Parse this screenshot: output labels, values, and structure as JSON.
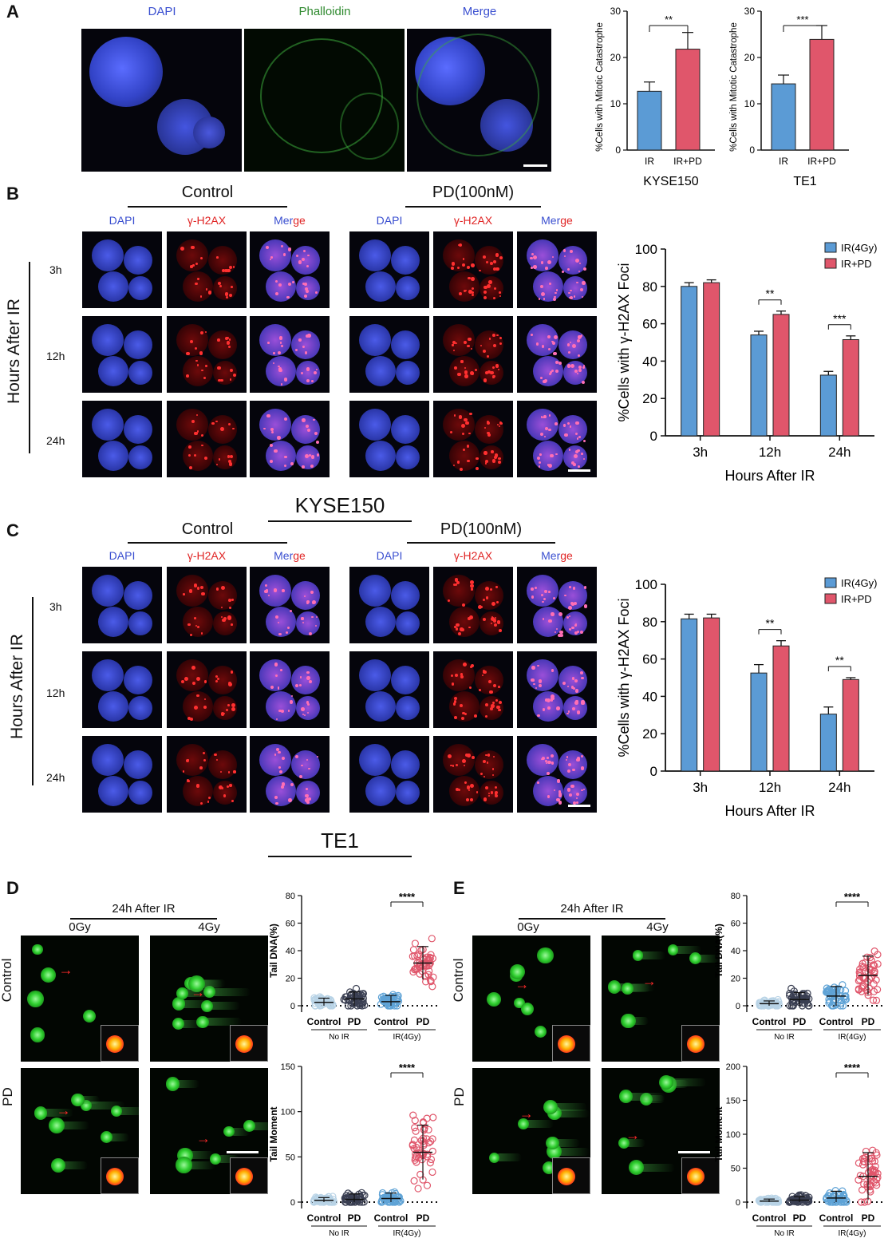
{
  "panels": {
    "A": "A",
    "B": "B",
    "C": "C",
    "D": "D",
    "E": "E"
  },
  "panelA": {
    "labels": {
      "dapi": "DAPI",
      "phalloidin": "Phalloidin",
      "merge": "Merge"
    }
  },
  "panelB": {
    "control": "Control",
    "pd": "PD(100nM)",
    "dapi": "DAPI",
    "h2ax_prefix": "γ-H2AX",
    "merge_a": "Mer",
    "merge_b": "ge",
    "rows": [
      "3h",
      "12h",
      "24h"
    ],
    "side": "Hours After IR",
    "cellline": "KYSE150"
  },
  "panelC": {
    "control": "Control",
    "pd": "PD(100nM)",
    "dapi": "DAPI",
    "h2ax_prefix": "γ-H2AX",
    "merge_a": "Mer",
    "merge_b": "ge",
    "rows": [
      "3h",
      "12h",
      "24h"
    ],
    "side": "Hours After IR",
    "cellline": "TE1"
  },
  "panelD": {
    "header": "24h After IR",
    "cols": [
      "0Gy",
      "4Gy"
    ],
    "rows": [
      "Control",
      "PD"
    ]
  },
  "panelE": {
    "header": "24h After IR",
    "cols": [
      "0Gy",
      "4Gy"
    ],
    "rows": [
      "Control",
      "PD"
    ]
  },
  "colors": {
    "blue": "#5b9bd5",
    "red": "#e0566b",
    "blue_label": "#3a4fd0",
    "red_label": "#e02424",
    "green_label": "#2f8a2f"
  },
  "chart_data": [
    {
      "id": "A1",
      "type": "bar",
      "categories": [
        "IR",
        "IR+PD"
      ],
      "values": [
        12.7,
        21.8
      ],
      "errors": [
        2.0,
        3.6
      ],
      "ylabel": "%Cells with Mitotic Catastrophe",
      "xlabel": "KYSE150",
      "ylim": [
        0,
        30
      ],
      "yticks": [
        0,
        10,
        20,
        30
      ],
      "significance": [
        {
          "between": [
            0,
            1
          ],
          "label": "**"
        }
      ],
      "colors": [
        "#5b9bd5",
        "#e0566b"
      ]
    },
    {
      "id": "A2",
      "type": "bar",
      "categories": [
        "IR",
        "IR+PD"
      ],
      "values": [
        14.3,
        23.9
      ],
      "errors": [
        1.9,
        3.0
      ],
      "ylabel": "%Cells with Mitotic Catastrophe",
      "xlabel": "TE1",
      "ylim": [
        0,
        30
      ],
      "yticks": [
        0,
        10,
        20,
        30
      ],
      "significance": [
        {
          "between": [
            0,
            1
          ],
          "label": "***"
        }
      ],
      "colors": [
        "#5b9bd5",
        "#e0566b"
      ]
    },
    {
      "id": "B",
      "type": "bar",
      "categories": [
        "3h",
        "12h",
        "24h"
      ],
      "series": [
        {
          "name": "IR(4Gy)",
          "values": [
            80,
            54,
            32.5
          ],
          "errors": [
            2.0,
            2.0,
            2.0
          ],
          "color": "#5b9bd5"
        },
        {
          "name": "IR+PD",
          "values": [
            82,
            65,
            51.5
          ],
          "errors": [
            1.5,
            1.8,
            2.0
          ],
          "color": "#e0566b"
        }
      ],
      "ylabel": "%Cells with γ-H2AX Foci",
      "xlabel": "Hours After IR",
      "ylim": [
        0,
        100
      ],
      "yticks": [
        0,
        20,
        40,
        60,
        80,
        100
      ],
      "significance": [
        {
          "category": 1,
          "label": "**"
        },
        {
          "category": 2,
          "label": "***"
        }
      ],
      "legend": "top-right"
    },
    {
      "id": "C",
      "type": "bar",
      "categories": [
        "3h",
        "12h",
        "24h"
      ],
      "series": [
        {
          "name": "IR(4Gy)",
          "values": [
            81.5,
            52.5,
            30.5
          ],
          "errors": [
            2.5,
            4.5,
            3.8
          ],
          "color": "#5b9bd5"
        },
        {
          "name": "IR+PD",
          "values": [
            82,
            67,
            49
          ],
          "errors": [
            2.0,
            2.8,
            1.0
          ],
          "color": "#e0566b"
        }
      ],
      "ylabel": "%Cells with γ-H2AX Foci",
      "xlabel": "Hours After IR",
      "ylim": [
        0,
        100
      ],
      "yticks": [
        0,
        20,
        40,
        60,
        80,
        100
      ],
      "significance": [
        {
          "category": 1,
          "label": "**"
        },
        {
          "category": 2,
          "label": "**"
        }
      ],
      "legend": "top-right"
    },
    {
      "id": "D1",
      "type": "scatter",
      "categories": [
        "Control",
        "PD",
        "Control",
        "PD"
      ],
      "groups": [
        {
          "label": "No IR",
          "span": [
            0,
            1
          ]
        },
        {
          "label": "IR(4Gy)",
          "span": [
            2,
            3
          ]
        }
      ],
      "means": [
        2.5,
        5.0,
        3.0,
        31
      ],
      "sds": [
        3,
        5,
        4.5,
        12
      ],
      "ylabel": "Tail DNA(%)",
      "ylim": [
        0,
        80
      ],
      "yticks": [
        0,
        20,
        40,
        60,
        80
      ],
      "significance": [
        {
          "between": [
            2,
            3
          ],
          "label": "****"
        }
      ],
      "colors": [
        "#b8d3e6",
        "#3a3f52",
        "#5fa3d6",
        "#e0566b"
      ]
    },
    {
      "id": "D2",
      "type": "scatter",
      "categories": [
        "Control",
        "PD",
        "Control",
        "PD"
      ],
      "groups": [
        {
          "label": "No IR",
          "span": [
            0,
            1
          ]
        },
        {
          "label": "IR(4Gy)",
          "span": [
            2,
            3
          ]
        }
      ],
      "means": [
        2,
        3,
        4,
        55
      ],
      "sds": [
        3,
        6,
        6,
        30
      ],
      "ylabel": "Tail Moment",
      "ylim": [
        0,
        150
      ],
      "yticks": [
        0,
        50,
        100,
        150
      ],
      "significance": [
        {
          "between": [
            2,
            3
          ],
          "label": "****"
        }
      ],
      "colors": [
        "#b8d3e6",
        "#3a3f52",
        "#5fa3d6",
        "#e0566b"
      ]
    },
    {
      "id": "E1",
      "type": "scatter",
      "categories": [
        "Control",
        "PD",
        "Control",
        "PD"
      ],
      "groups": [
        {
          "label": "No IR",
          "span": [
            0,
            1
          ]
        },
        {
          "label": "IR(4Gy)",
          "span": [
            2,
            3
          ]
        }
      ],
      "means": [
        1.5,
        4.5,
        7,
        22
      ],
      "sds": [
        2,
        5,
        7,
        14
      ],
      "ylabel": "Tail DNA(%)",
      "ylim": [
        0,
        80
      ],
      "yticks": [
        0,
        20,
        40,
        60,
        80
      ],
      "significance": [
        {
          "between": [
            2,
            3
          ],
          "label": "****"
        }
      ],
      "colors": [
        "#b8d3e6",
        "#3a3f52",
        "#5fa3d6",
        "#e0566b"
      ]
    },
    {
      "id": "E2",
      "type": "scatter",
      "categories": [
        "Control",
        "PD",
        "Control",
        "PD"
      ],
      "groups": [
        {
          "label": "No IR",
          "span": [
            0,
            1
          ]
        },
        {
          "label": "IR(4Gy)",
          "span": [
            2,
            3
          ]
        }
      ],
      "means": [
        1.5,
        3,
        6,
        38
      ],
      "sds": [
        3,
        5,
        10,
        35
      ],
      "ylabel": "Tail Moment",
      "ylim": [
        0,
        200
      ],
      "yticks": [
        0,
        50,
        100,
        150,
        200
      ],
      "significance": [
        {
          "between": [
            2,
            3
          ],
          "label": "****"
        }
      ],
      "colors": [
        "#b8d3e6",
        "#3a3f52",
        "#5fa3d6",
        "#e0566b"
      ]
    }
  ]
}
